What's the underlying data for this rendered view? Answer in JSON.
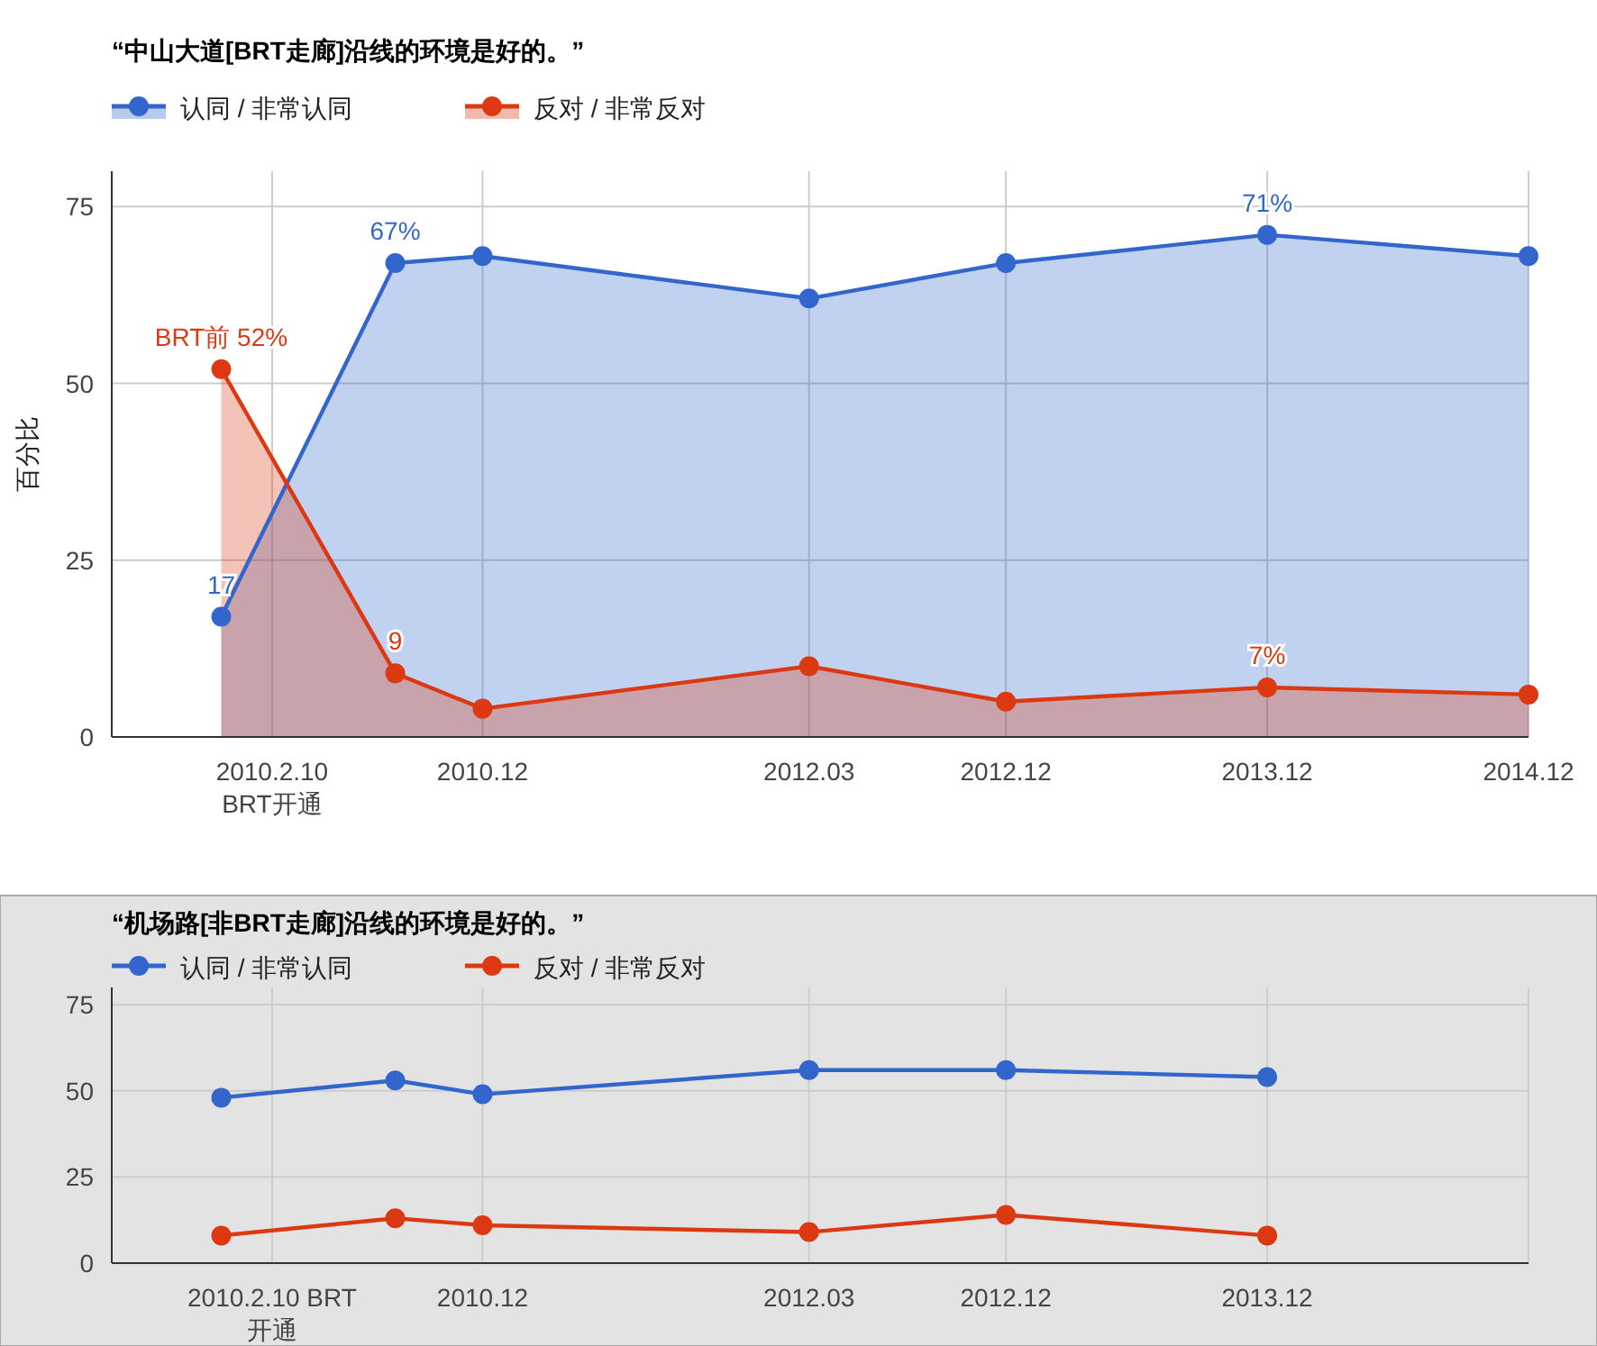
{
  "chart_data": [
    {
      "type": "area",
      "title": "“中山大道[BRT走廊]沿线的环境是好的。”",
      "ylabel": "百分比",
      "x": [
        "2009-12",
        "2010-08",
        "2010-12",
        "2012-03",
        "2012-12",
        "2013-12",
        "2014-12"
      ],
      "xlim": [
        "2009-07",
        "2014-12"
      ],
      "xticks": [
        {
          "value": "2010-02-10",
          "label": "2010.2.10\nBRT开通"
        },
        {
          "value": "2010-12",
          "label": "2010.12"
        },
        {
          "value": "2012-03",
          "label": "2012.03"
        },
        {
          "value": "2012-12",
          "label": "2012.12"
        },
        {
          "value": "2013-12",
          "label": "2013.12"
        },
        {
          "value": "2014-12",
          "label": "2014.12"
        }
      ],
      "ylim": [
        0,
        80
      ],
      "yticks": [
        0,
        25,
        50,
        75
      ],
      "grid": true,
      "legend": "top left",
      "marker": "circle",
      "series": [
        {
          "name": "认同 / 非常认同",
          "color": "#3366cc",
          "values": [
            17,
            67,
            68,
            62,
            67,
            71,
            68
          ],
          "value_labels": [
            "17",
            "67%",
            null,
            null,
            null,
            "71%",
            null
          ]
        },
        {
          "name": "反对 / 非常反对",
          "color": "#dc3912",
          "values": [
            52,
            9,
            4,
            10,
            5,
            7,
            6
          ],
          "value_labels": [
            "BRT前 52%",
            "9",
            null,
            null,
            null,
            "7%",
            null
          ]
        }
      ]
    },
    {
      "type": "line",
      "title": "“机场路[非BRT走廊]沿线的环境是好的。”",
      "x": [
        "2009-12",
        "2010-08",
        "2010-12",
        "2012-03",
        "2012-12",
        "2013-12"
      ],
      "xlim": [
        "2009-07",
        "2014-12"
      ],
      "xticks": [
        {
          "value": "2010-02-10",
          "label": "2010.2.10 BRT\n开通"
        },
        {
          "value": "2010-12",
          "label": "2010.12"
        },
        {
          "value": "2012-03",
          "label": "2012.03"
        },
        {
          "value": "2012-12",
          "label": "2012.12"
        },
        {
          "value": "2013-12",
          "label": "2013.12"
        },
        {
          "value": "2014-12",
          "label": null
        }
      ],
      "ylim": [
        0,
        80
      ],
      "yticks": [
        0,
        25,
        50,
        75
      ],
      "grid": true,
      "legend": "top left",
      "marker": "circle",
      "series": [
        {
          "name": "认同 / 非常认同",
          "color": "#3366cc",
          "values": [
            48,
            53,
            49,
            56,
            56,
            54
          ]
        },
        {
          "name": "反对 / 非常反对",
          "color": "#dc3912",
          "values": [
            8,
            13,
            11,
            9,
            14,
            8
          ]
        }
      ]
    }
  ]
}
